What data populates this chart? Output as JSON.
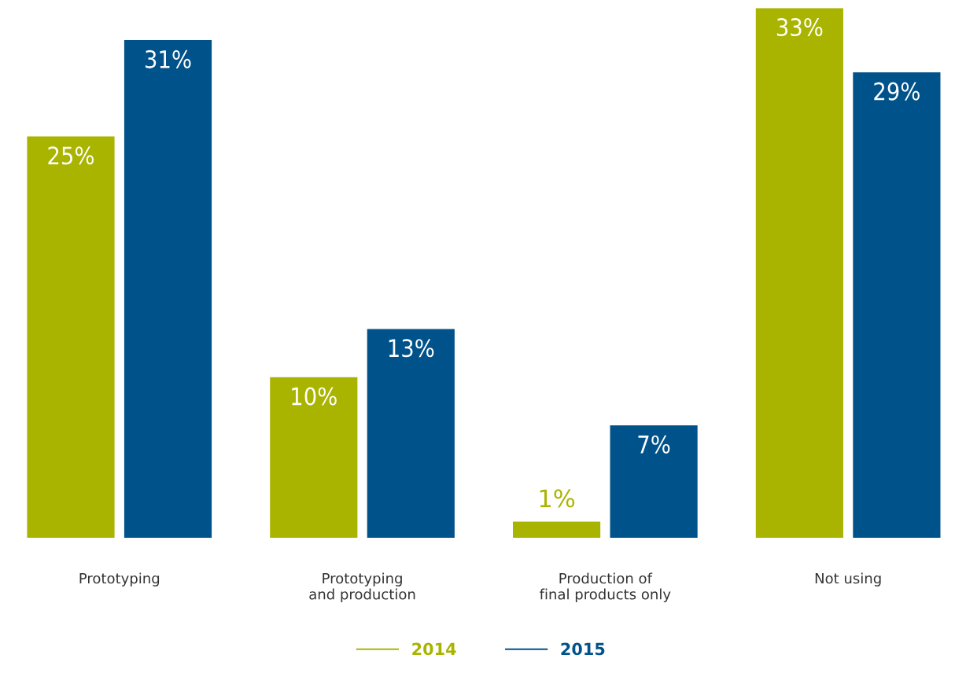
{
  "chart_data": {
    "type": "bar",
    "categories": [
      "Prototyping",
      "Prototyping\nand production",
      "Production of\nfinal products only",
      "Not using"
    ],
    "series": [
      {
        "name": "2014",
        "color": "#a9b400",
        "values": [
          25,
          10,
          1,
          33
        ],
        "value_labels": [
          "25%",
          "10%",
          "1%",
          "33%"
        ]
      },
      {
        "name": "2015",
        "color": "#00528a",
        "values": [
          31,
          13,
          7,
          29
        ],
        "value_labels": [
          "31%",
          "13%",
          "7%",
          "29%"
        ]
      }
    ],
    "legend": "bottom",
    "grid": false
  }
}
